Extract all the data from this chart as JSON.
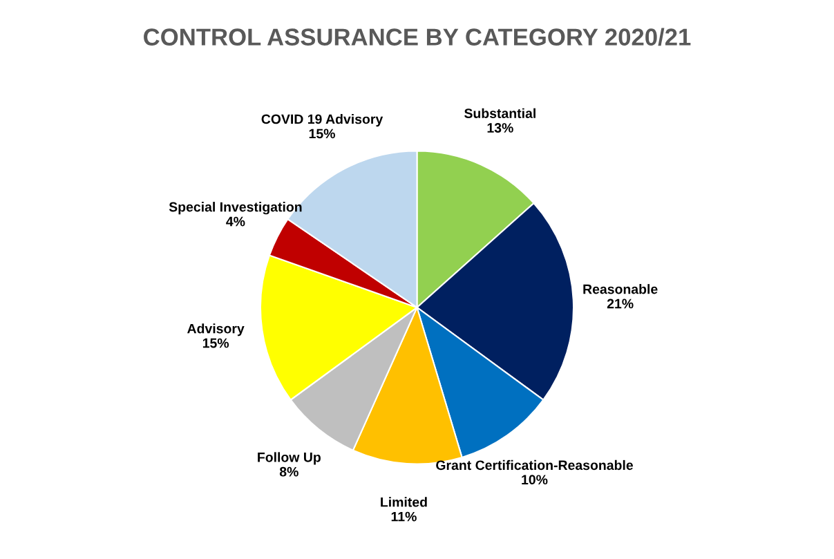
{
  "chart_data": {
    "type": "pie",
    "title": "CONTROL ASSURANCE BY CATEGORY 2020/21",
    "categories": [
      "Substantial",
      "Reasonable",
      "Grant Certification-Reasonable",
      "Limited",
      "Follow Up",
      "Advisory",
      "Special Investigation",
      "COVID 19 Advisory"
    ],
    "values": [
      13,
      21,
      10,
      11,
      8,
      15,
      4,
      15
    ],
    "value_labels": [
      "13%",
      "21%",
      "10%",
      "11%",
      "8%",
      "15%",
      "4%",
      "15%"
    ],
    "colors": [
      "#92d050",
      "#002060",
      "#0070c0",
      "#ffc000",
      "#bfbfbf",
      "#ffff00",
      "#c00000",
      "#bdd7ee"
    ]
  }
}
